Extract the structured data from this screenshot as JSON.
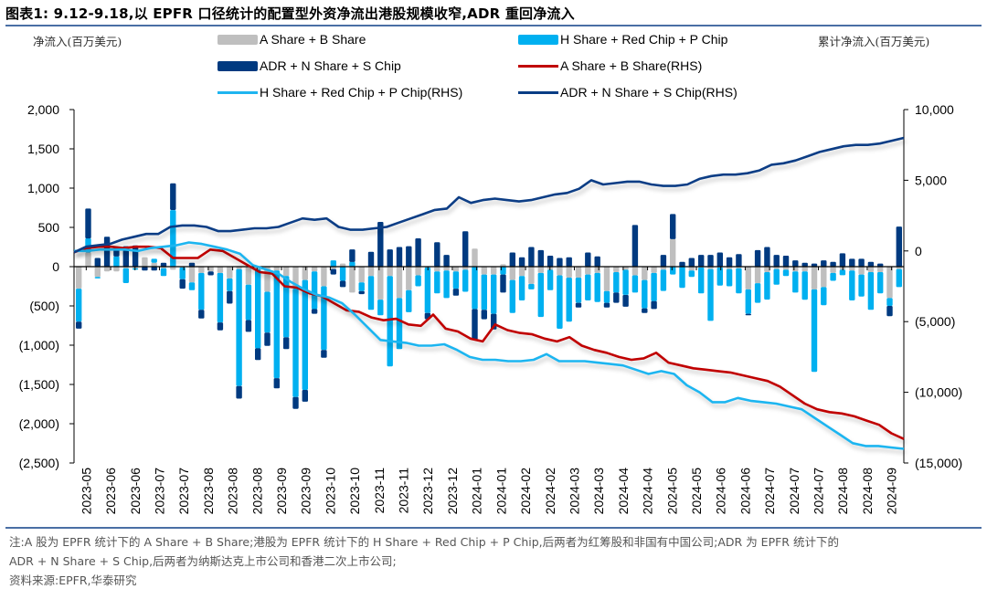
{
  "title": "图表1:  9.12-9.18,以 EPFR 口径统计的配置型外资净流出港股规模收窄,ADR 重回净流入",
  "footer": {
    "note_line1": "注:A 股为 EPFR 统计下的 A Share + B Share;港股为 EPFR 统计下的 H Share + Red Chip + P Chip,后两者为红筹股和非国有中国公司;ADR 为 EPFR 统计下的",
    "note_line2": "ADR + N Share + S Chip,后两者为纳斯达克上市公司和香港二次上市公司;",
    "source": "资料来源:EPFR,华泰研究"
  },
  "colors": {
    "ab_bar": "#bfbfbf",
    "h_bar": "#00b0f0",
    "adr_bar": "#003a80",
    "ab_line": "#c00000",
    "h_line": "#1fb5f0",
    "adr_line": "#083d85",
    "axis": "#000000",
    "rule": "#4a6fa5"
  },
  "chart_data": {
    "type": "bar",
    "subtype": "stacked bar (LHS) + line (RHS)",
    "ylabel_left": "净流入(百万美元)",
    "ylabel_right": "累计净流入(百万美元)",
    "ylim_left": [
      -2500,
      2000
    ],
    "yticks_left": [
      2000,
      1500,
      1000,
      500,
      0,
      -500,
      -1000,
      -1500,
      -2000,
      -2500
    ],
    "ytick_labels_left": [
      "2,000",
      "1,500",
      "1,000",
      "500",
      "0",
      "(500)",
      "(1,000)",
      "(1,500)",
      "(2,000)",
      "(2,500)"
    ],
    "ylim_right": [
      -15000,
      10000
    ],
    "yticks_right": [
      10000,
      5000,
      0,
      -5000,
      -10000,
      -15000
    ],
    "ytick_labels_right": [
      "10,000",
      "5,000",
      "0",
      "(5,000)",
      "(10,000)",
      "(15,000)"
    ],
    "grid": false,
    "legend_position": "top",
    "xtick_labels": [
      "2023-05",
      "2023-06",
      "2023-06",
      "2023-07",
      "2023-07",
      "2023-08",
      "2023-08",
      "2023-08",
      "2023-09",
      "2023-09",
      "2023-10",
      "2023-10",
      "2023-11",
      "2023-11",
      "2023-12",
      "2023-12",
      "2024-01",
      "2024-01",
      "2024-02",
      "2024-02",
      "2024-03",
      "2024-03",
      "2024-04",
      "2024-04",
      "2024-05",
      "2024-05",
      "2024-06",
      "2024-06",
      "2024-07",
      "2024-07",
      "2024-07",
      "2024-08",
      "2024-08",
      "2024-09"
    ],
    "bar_series": [
      {
        "name": "A Share + B Share",
        "axis": "left",
        "values": [
          -280,
          180,
          -130,
          -60,
          -60,
          -20,
          -20,
          120,
          50,
          -20,
          -40,
          -10,
          -200,
          -80,
          -60,
          -80,
          -150,
          -30,
          -230,
          -30,
          -320,
          -50,
          -120,
          -280,
          -170,
          -60,
          -250,
          -30,
          40,
          -330,
          -200,
          -120,
          -420,
          -120,
          -400,
          -300,
          -110,
          -10,
          -60,
          -50,
          -60,
          -40,
          230,
          -100,
          -100,
          30,
          -170,
          -120,
          -220,
          -80,
          -40,
          -110,
          -140,
          -140,
          -100,
          -80,
          -310,
          -70,
          -40,
          -110,
          -170,
          -80,
          -40,
          350,
          0,
          -50,
          -10,
          -30,
          -10,
          -30,
          -20,
          -290,
          -210,
          -70,
          -30,
          -40,
          -60,
          -60,
          -290,
          -260,
          -80,
          -40,
          -50,
          -100,
          -70,
          -70,
          -400,
          -30
        ]
      },
      {
        "name": "H Share + Red Chip + P Chip",
        "axis": "left",
        "values": [
          -420,
          180,
          -20,
          0,
          130,
          -190,
          -20,
          0,
          50,
          -100,
          720,
          -150,
          -100,
          -470,
          0,
          -630,
          -160,
          -1490,
          -450,
          -1010,
          -520,
          -1370,
          -780,
          -1380,
          -1400,
          -480,
          -810,
          80,
          -180,
          60,
          -110,
          -430,
          -200,
          -1150,
          -650,
          -280,
          -140,
          -580,
          -280,
          -350,
          -220,
          -280,
          -540,
          -450,
          -500,
          -100,
          -420,
          -310,
          -70,
          -560,
          -260,
          -680,
          -560,
          -320,
          -330,
          -370,
          -150,
          -260,
          -320,
          -220,
          -360,
          -360,
          -270,
          -100,
          -270,
          -80,
          -330,
          -660,
          -230,
          -220,
          -320,
          -310,
          -250,
          -350,
          -200,
          -80,
          -270,
          -360,
          -1050,
          -230,
          -100,
          -70,
          -380,
          -280,
          -480,
          -270,
          -100,
          -230
        ]
      },
      {
        "name": "ADR + N Share + S Chip",
        "axis": "left",
        "values": [
          -90,
          380,
          110,
          380,
          110,
          260,
          270,
          -50,
          -50,
          50,
          340,
          -120,
          50,
          -110,
          -50,
          -100,
          -160,
          -160,
          -150,
          -150,
          -170,
          -130,
          -150,
          -150,
          -150,
          -60,
          -100,
          -70,
          -80,
          160,
          -40,
          190,
          570,
          220,
          250,
          260,
          360,
          -80,
          310,
          150,
          -90,
          450,
          -390,
          -120,
          -200,
          -230,
          180,
          120,
          250,
          210,
          140,
          110,
          120,
          -60,
          180,
          130,
          -60,
          -130,
          -150,
          530,
          -60,
          -100,
          150,
          320,
          60,
          110,
          150,
          150,
          180,
          120,
          160,
          -20,
          210,
          250,
          150,
          140,
          80,
          50,
          40,
          80,
          60,
          170,
          100,
          100,
          60,
          40,
          -130,
          510
        ]
      }
    ],
    "line_series": [
      {
        "name": "A Share + B Share(RHS)",
        "axis": "right",
        "values": [
          -100,
          200,
          300,
          300,
          200,
          300,
          300,
          200,
          -500,
          -500,
          -500,
          100,
          0,
          -500,
          -1000,
          -1500,
          -1600,
          -2500,
          -2600,
          -3000,
          -3200,
          -3700,
          -4200,
          -4300,
          -4700,
          -4900,
          -4800,
          -5200,
          -5300,
          -4500,
          -5500,
          -5700,
          -6200,
          -6400,
          -5200,
          -5600,
          -5800,
          -5900,
          -6200,
          -6400,
          -6100,
          -6700,
          -7000,
          -7200,
          -7500,
          -7700,
          -7600,
          -7200,
          -7900,
          -8100,
          -8300,
          -8400,
          -8500,
          -8600,
          -8800,
          -9000,
          -9200,
          -9600,
          -10200,
          -10800,
          -11200,
          -11400,
          -11500,
          -11700,
          -12000,
          -12300,
          -12900,
          -13300
        ]
      },
      {
        "name": "H Share + Red Chip + P Chip(RHS)",
        "axis": "right",
        "values": [
          0,
          0,
          100,
          100,
          100,
          0,
          200,
          300,
          400,
          600,
          500,
          300,
          100,
          -200,
          -1000,
          -1300,
          -1600,
          -2200,
          -2700,
          -3100,
          -3300,
          -3700,
          -4500,
          -5400,
          -6300,
          -6400,
          -6500,
          -6700,
          -6700,
          -6600,
          -7000,
          -7500,
          -7700,
          -7700,
          -7800,
          -7800,
          -7700,
          -7300,
          -7800,
          -7800,
          -7800,
          -7900,
          -8000,
          -8100,
          -8400,
          -8700,
          -8500,
          -8700,
          -9500,
          -10000,
          -10700,
          -10700,
          -10400,
          -10600,
          -10700,
          -10800,
          -11000,
          -11200,
          -11800,
          -12400,
          -13000,
          -13600,
          -13800,
          -13800,
          -13900,
          -14000
        ]
      },
      {
        "name": "ADR + N Share + S Chip(RHS)",
        "axis": "right",
        "values": [
          -100,
          300,
          400,
          500,
          800,
          1000,
          1200,
          1200,
          1700,
          1800,
          1800,
          1700,
          1400,
          1400,
          1500,
          1600,
          1600,
          1700,
          2000,
          2300,
          2200,
          2300,
          1700,
          1500,
          1500,
          1600,
          1700,
          2000,
          2300,
          2600,
          2900,
          3000,
          3800,
          3400,
          3600,
          3700,
          3600,
          3500,
          3600,
          3800,
          4000,
          4100,
          4400,
          5000,
          4700,
          4800,
          4900,
          4900,
          4700,
          4600,
          4600,
          4700,
          5100,
          5300,
          5400,
          5400,
          5500,
          5700,
          6100,
          6200,
          6400,
          6700,
          7000,
          7200,
          7400,
          7500,
          7500,
          7600,
          7800,
          8000
        ]
      }
    ]
  },
  "legend": [
    {
      "label": "A Share + B Share",
      "kind": "bar",
      "color_key": "ab_bar"
    },
    {
      "label": "H Share + Red Chip + P Chip",
      "kind": "bar",
      "color_key": "h_bar"
    },
    {
      "label": "ADR + N Share + S Chip",
      "kind": "bar",
      "color_key": "adr_bar"
    },
    {
      "label": "A Share + B Share(RHS)",
      "kind": "line",
      "color_key": "ab_line"
    },
    {
      "label": "H Share + Red Chip + P Chip(RHS)",
      "kind": "line",
      "color_key": "h_line"
    },
    {
      "label": "ADR + N Share + S Chip(RHS)",
      "kind": "line",
      "color_key": "adr_line"
    }
  ]
}
